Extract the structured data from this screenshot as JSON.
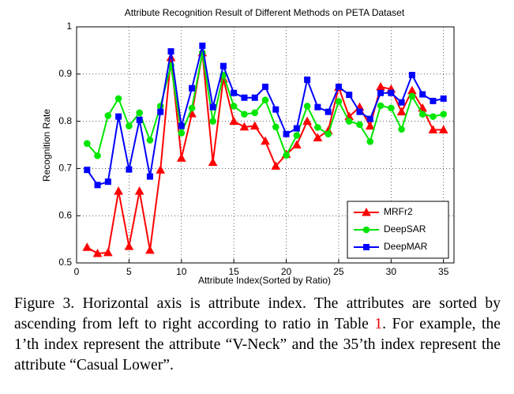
{
  "chart_data": {
    "type": "line",
    "title": "Attribute Recognition Result of Different Methods on PETA Dataset",
    "x_label": "Attribute Index(Sorted by Ratio)",
    "y_label": "Recognition Rate",
    "x": [
      1,
      2,
      3,
      4,
      5,
      6,
      7,
      8,
      9,
      10,
      11,
      12,
      13,
      14,
      15,
      16,
      17,
      18,
      19,
      20,
      21,
      22,
      23,
      24,
      25,
      26,
      27,
      28,
      29,
      30,
      31,
      32,
      33,
      34,
      35
    ],
    "series": [
      {
        "name": "MRFr2",
        "color": "#ff0000",
        "marker": "triangle",
        "values": [
          0.533,
          0.52,
          0.522,
          0.652,
          0.535,
          0.652,
          0.527,
          0.697,
          0.935,
          0.722,
          0.816,
          0.945,
          0.713,
          0.89,
          0.8,
          0.788,
          0.79,
          0.758,
          0.705,
          0.73,
          0.75,
          0.8,
          0.765,
          0.78,
          0.872,
          0.81,
          0.83,
          0.79,
          0.873,
          0.868,
          0.82,
          0.865,
          0.828,
          0.782,
          0.782
        ]
      },
      {
        "name": "DeepSAR",
        "color": "#00e600",
        "marker": "circle",
        "values": [
          0.753,
          0.727,
          0.812,
          0.848,
          0.79,
          0.818,
          0.76,
          0.832,
          0.918,
          0.775,
          0.828,
          0.945,
          0.8,
          0.898,
          0.832,
          0.815,
          0.818,
          0.845,
          0.788,
          0.728,
          0.77,
          0.832,
          0.787,
          0.773,
          0.842,
          0.8,
          0.793,
          0.757,
          0.833,
          0.828,
          0.783,
          0.853,
          0.815,
          0.81,
          0.815
        ]
      },
      {
        "name": "DeepMAR",
        "color": "#0000ff",
        "marker": "square",
        "values": [
          0.697,
          0.665,
          0.672,
          0.81,
          0.698,
          0.803,
          0.683,
          0.82,
          0.948,
          0.79,
          0.87,
          0.96,
          0.83,
          0.917,
          0.86,
          0.85,
          0.85,
          0.873,
          0.825,
          0.773,
          0.785,
          0.888,
          0.83,
          0.82,
          0.873,
          0.856,
          0.82,
          0.805,
          0.86,
          0.86,
          0.84,
          0.898,
          0.857,
          0.843,
          0.848
        ]
      }
    ],
    "xlim": [
      0,
      36
    ],
    "ylim": [
      0.5,
      1
    ],
    "xticks": [
      0,
      5,
      10,
      15,
      20,
      25,
      30,
      35
    ],
    "yticks": [
      0.5,
      0.6,
      0.7,
      0.8,
      0.9,
      1
    ],
    "grid": true,
    "legend": "lower right"
  },
  "caption": {
    "before": "Figure 3. Horizontal axis is attribute index. The attributes are sorted by ascending from left to right according to ratio in Table ",
    "ref": "1",
    "after": ". For example, the 1’th index represent the attribute “V-Neck” and the 35’th index represent the attribute “Casual Lower”."
  }
}
